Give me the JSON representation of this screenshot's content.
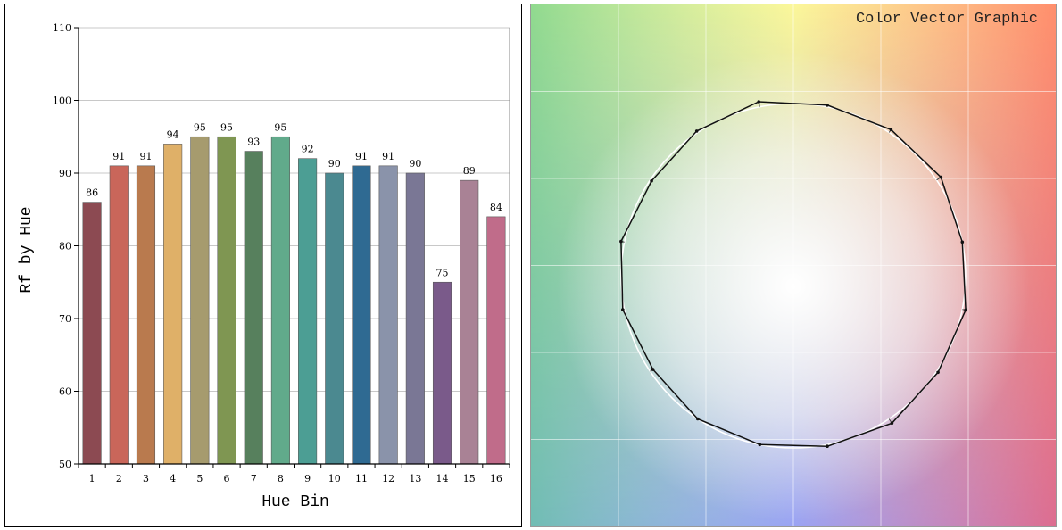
{
  "chart_data": [
    {
      "type": "bar",
      "ylabel": "Rf by Hue",
      "xlabel": "Hue Bin",
      "ylim": [
        50,
        110
      ],
      "yticks": [
        50,
        60,
        70,
        80,
        90,
        100,
        110
      ],
      "grid": true,
      "categories": [
        "1",
        "2",
        "3",
        "4",
        "5",
        "6",
        "7",
        "8",
        "9",
        "10",
        "11",
        "12",
        "13",
        "14",
        "15",
        "16"
      ],
      "values": [
        86,
        91,
        91,
        94,
        95,
        95,
        93,
        95,
        92,
        90,
        91,
        91,
        90,
        75,
        89,
        84
      ],
      "data_labels": [
        "86",
        "91",
        "91",
        "94",
        "95",
        "95",
        "93",
        "95",
        "92",
        "90",
        "91",
        "91",
        "90",
        "75",
        "89",
        "84"
      ],
      "colors": [
        "#8c4a52",
        "#c9665a",
        "#b97a4e",
        "#dfb068",
        "#a69b6e",
        "#7f9652",
        "#57805d",
        "#61aa8b",
        "#4c9e94",
        "#4b8990",
        "#2f6a92",
        "#8a93aa",
        "#7a7795",
        "#7a5a8a",
        "#a98295",
        "#c06c8a"
      ]
    },
    {
      "type": "scatter",
      "title": "Color Vector Graphic",
      "reference_circle": true,
      "test_vectors": [
        1.0,
        1.03,
        1.02,
        1.01,
        1.03,
        1.01,
        0.99,
        1.02,
        1.01,
        0.98,
        1.0,
        1.0,
        1.01,
        1.03,
        1.01,
        1.02
      ],
      "grid": true
    }
  ]
}
